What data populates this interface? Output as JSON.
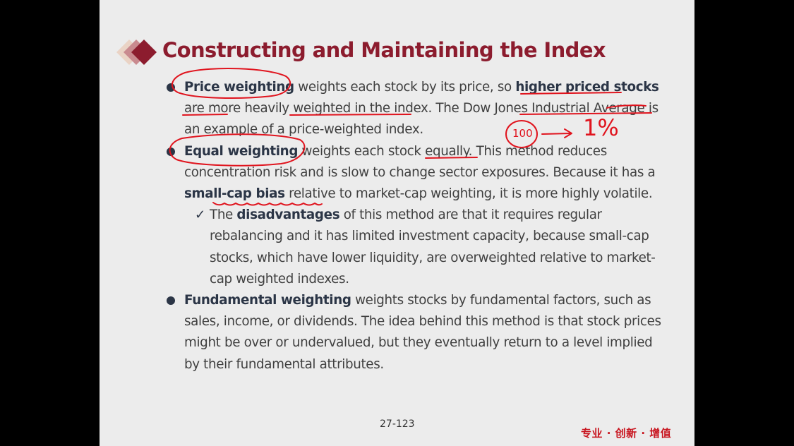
{
  "slide": {
    "title": "Constructing and Maintaining the Index",
    "page_number": "27-123",
    "slogan": "专业 · 创新 · 增值",
    "accent_color": "#8c1c2e",
    "slogan_color": "#c8141e",
    "annotation_color": "#e0141e"
  },
  "bullets": {
    "price": {
      "b1": "Price weighting",
      "t1": " weights each stock by its price, so ",
      "b2": "higher priced stocks",
      "t2": " are more heavily weighted in the index. The Dow Jones Industrial Average is an example of a price-weighted index."
    },
    "equal": {
      "b1": "Equal weighting",
      "t1": " weights each stock equally. This method reduces concentration risk and is slow to change sector exposures. Because it has a ",
      "b2": "small-cap bias",
      "t2": " relative to market-cap weighting, it is more highly volatile."
    },
    "equal_sub": {
      "check": "✓",
      "t0": "The ",
      "b1": "disadvantages",
      "t1": " of this method are that it requires regular rebalancing and it has limited investment capacity, because small-cap stocks, which have lower liquidity, are overweighted relative to market-cap weighted indexes."
    },
    "fundamental": {
      "b1": "Fundamental weighting",
      "t1": " weights stocks by fundamental factors, such as sales, income, or dividends. The idea behind this method is that stock prices might be over or undervalued, but they eventually return to a level implied by their fundamental attributes."
    }
  },
  "annotations": {
    "circled_number": "100",
    "arrow_target": "1%"
  }
}
